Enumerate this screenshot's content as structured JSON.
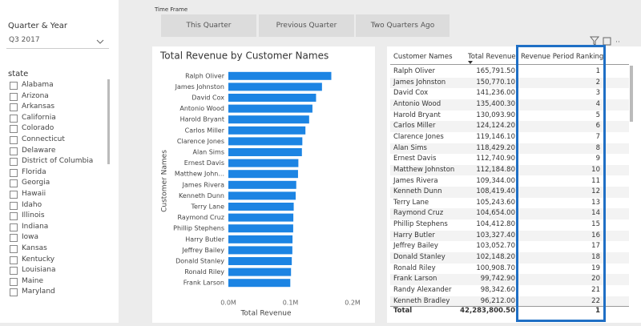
{
  "quarter_slicer": {
    "title": "Quarter & Year",
    "value": "Q3 2017"
  },
  "state_slicer": {
    "title": "state",
    "items": [
      "Alabama",
      "Arizona",
      "Arkansas",
      "California",
      "Colorado",
      "Connecticut",
      "Delaware",
      "District of Columbia",
      "Florida",
      "Georgia",
      "Hawaii",
      "Idaho",
      "Illinois",
      "Indiana",
      "Iowa",
      "Kansas",
      "Kentucky",
      "Louisiana",
      "Maine",
      "Maryland"
    ]
  },
  "time_frame": {
    "title": "Time Frame",
    "buttons": [
      "This Quarter",
      "Previous Quarter",
      "Two Quarters Ago"
    ]
  },
  "chart_data": {
    "type": "bar",
    "orientation": "horizontal",
    "title": "Total Revenue by Customer Names",
    "x_label": "Total Revenue",
    "y_label": "Customer Names",
    "color": "#1c84e3",
    "grid": false,
    "categories": [
      "Ralph Oliver",
      "James Johnston",
      "David Cox",
      "Antonio Wood",
      "Harold Bryant",
      "Carlos Miller",
      "Clarence Jones",
      "Alan Sims",
      "Ernest Davis",
      "Matthew John...",
      "James Rivera",
      "Kenneth Dunn",
      "Terry Lane",
      "Raymond Cruz",
      "Phillip Stephens",
      "Harry Butler",
      "Jeffrey Bailey",
      "Donald Stanley",
      "Ronald Riley",
      "Frank Larson"
    ],
    "values": [
      165791.5,
      150770.1,
      141236.0,
      135400.3,
      130093.9,
      124124.2,
      119146.1,
      118429.2,
      112740.9,
      112184.8,
      109344.0,
      108419.4,
      105243.6,
      104654.0,
      104412.8,
      103327.4,
      103052.7,
      102148.2,
      100908.7,
      99742.9
    ],
    "xlim": [
      0,
      200000
    ],
    "xticks": [
      {
        "value": 0,
        "label": "0.0M"
      },
      {
        "value": 100000,
        "label": "0.1M"
      },
      {
        "value": 200000,
        "label": "0.2M"
      }
    ]
  },
  "table": {
    "columns": [
      "Customer Names",
      "Total Revenue",
      "Revenue Period Ranking"
    ],
    "rows": [
      [
        "Ralph Oliver",
        "165,791.50",
        "1"
      ],
      [
        "James Johnston",
        "150,770.10",
        "2"
      ],
      [
        "David Cox",
        "141,236.00",
        "3"
      ],
      [
        "Antonio Wood",
        "135,400.30",
        "4"
      ],
      [
        "Harold Bryant",
        "130,093.90",
        "5"
      ],
      [
        "Carlos Miller",
        "124,124.20",
        "6"
      ],
      [
        "Clarence Jones",
        "119,146.10",
        "7"
      ],
      [
        "Alan Sims",
        "118,429.20",
        "8"
      ],
      [
        "Ernest Davis",
        "112,740.90",
        "9"
      ],
      [
        "Matthew Johnston",
        "112,184.80",
        "10"
      ],
      [
        "James Rivera",
        "109,344.00",
        "11"
      ],
      [
        "Kenneth Dunn",
        "108,419.40",
        "12"
      ],
      [
        "Terry Lane",
        "105,243.60",
        "13"
      ],
      [
        "Raymond Cruz",
        "104,654.00",
        "14"
      ],
      [
        "Phillip Stephens",
        "104,412.80",
        "15"
      ],
      [
        "Harry Butler",
        "103,327.40",
        "16"
      ],
      [
        "Jeffrey Bailey",
        "103,052.70",
        "17"
      ],
      [
        "Donald Stanley",
        "102,148.20",
        "18"
      ],
      [
        "Ronald Riley",
        "100,908.70",
        "19"
      ],
      [
        "Frank Larson",
        "99,742.90",
        "20"
      ],
      [
        "Randy Alexander",
        "98,342.60",
        "21"
      ],
      [
        "Kenneth Bradley",
        "96,212.00",
        "22"
      ]
    ],
    "total": [
      "Total",
      "42,283,800.50",
      "1"
    ]
  }
}
